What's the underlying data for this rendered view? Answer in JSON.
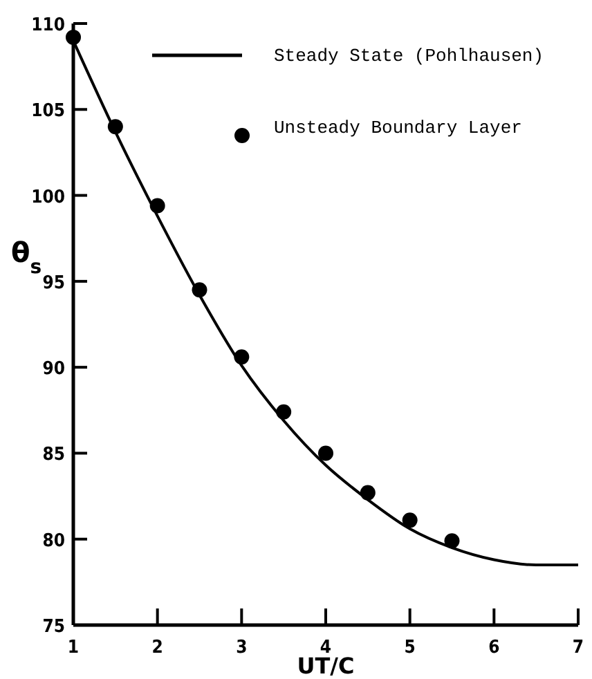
{
  "chart_data": {
    "type": "line",
    "xlabel": "UT/C",
    "ylabel": "θ$_{s}$",
    "xlim": [
      1,
      7
    ],
    "ylim": [
      75,
      110
    ],
    "xticks": [
      1,
      2,
      3,
      4,
      5,
      6,
      7
    ],
    "yticks": [
      75,
      80,
      85,
      90,
      95,
      100,
      105,
      110
    ],
    "grid": false,
    "legend": "top right",
    "series": [
      {
        "name": "Steady State (Pohlhausen)",
        "color": "#000000",
        "marker": "none",
        "line_style": "solid",
        "x": [
          1,
          1.5,
          2,
          2.5,
          3,
          3.5,
          4,
          4.5,
          5,
          5.5,
          6,
          6.5,
          7
        ],
        "values": [
          109,
          103.7,
          98.8,
          94.2,
          90.1,
          86.9,
          84.3,
          82.3,
          80.6,
          79.5,
          78.8,
          78.5,
          78.5
        ]
      },
      {
        "name": "Unsteady Boundary Layer",
        "type": "scatter",
        "color": "#000000",
        "marker": "circle",
        "x": [
          1,
          1.5,
          2,
          2.5,
          3,
          3.5,
          4,
          4.5,
          5,
          5.5
        ],
        "values": [
          109.2,
          104,
          99.4,
          94.5,
          90.6,
          87.4,
          85,
          82.7,
          81.1,
          79.9
        ]
      }
    ]
  }
}
